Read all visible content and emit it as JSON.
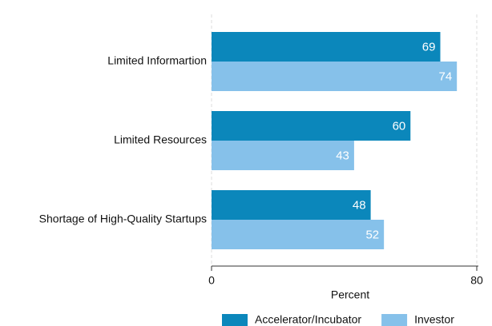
{
  "chart_data": {
    "type": "barh",
    "categories": [
      "Limited Informartion",
      "Limited Resources",
      "Shortage of High-Quality Startups"
    ],
    "series": [
      {
        "name": "Accelerator/Incubator",
        "color": "#0b87bb",
        "values": [
          69,
          60,
          48
        ]
      },
      {
        "name": "Investor",
        "color": "#86c1ea",
        "values": [
          74,
          43,
          52
        ]
      }
    ],
    "xlabel": "Percent",
    "xlim": [
      0,
      80
    ],
    "xticks": [
      0,
      80
    ],
    "grid": true,
    "legend": "bottom"
  }
}
